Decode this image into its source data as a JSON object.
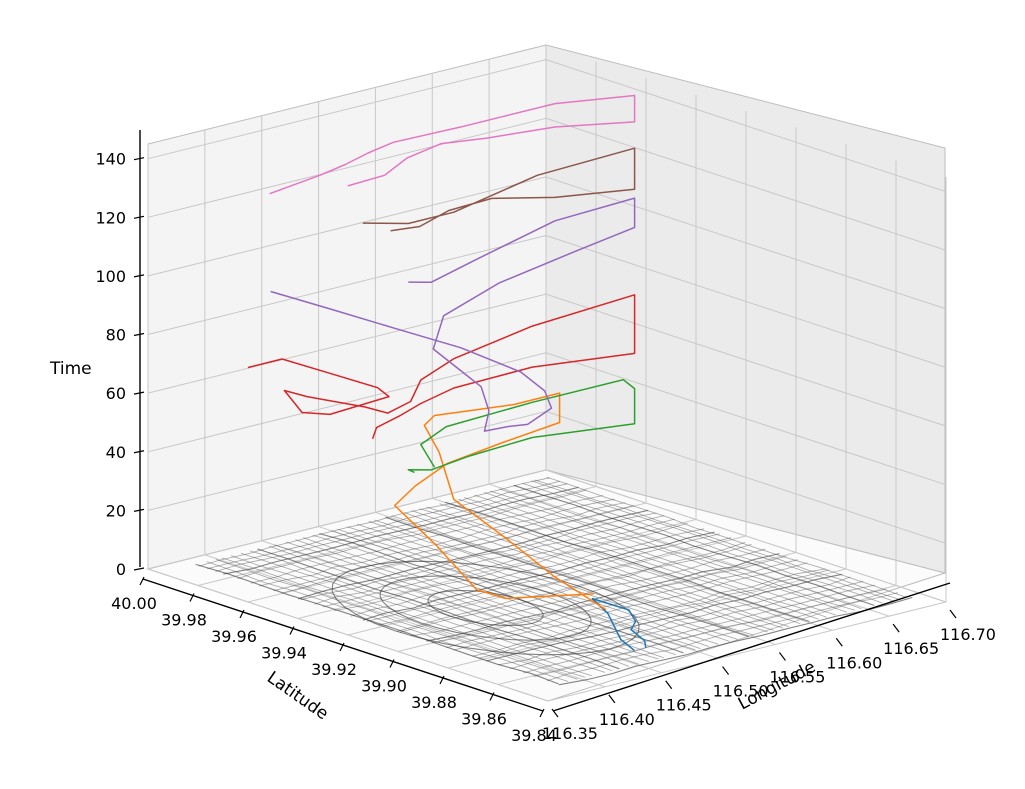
{
  "chart_data": {
    "type": "line",
    "projection": "3d",
    "xlabel": "Longitude",
    "ylabel": "Latitude",
    "zlabel": "Time",
    "xlim": [
      116.35,
      116.7
    ],
    "ylim": [
      39.84,
      40.0
    ],
    "zlim": [
      0,
      145
    ],
    "x_ticks": [
      "116.35",
      "116.40",
      "116.45",
      "116.50",
      "116.55",
      "116.60",
      "116.65",
      "116.70"
    ],
    "y_ticks": [
      "40.00",
      "39.98",
      "39.96",
      "39.94",
      "39.92",
      "39.90",
      "39.88",
      "39.86",
      "39.84"
    ],
    "z_ticks": [
      "0",
      "20",
      "40",
      "60",
      "80",
      "100",
      "120",
      "140"
    ],
    "grid": true,
    "base_layer": "road network map",
    "colors": [
      "#1f77b4",
      "#ff7f0e",
      "#2ca02c",
      "#d62728",
      "#9467bd",
      "#8c564b",
      "#e377c2"
    ],
    "series": [
      {
        "color": "#1f77b4",
        "points": [
          [
            116.47,
            39.86,
            0
          ],
          [
            116.48,
            39.87,
            0
          ],
          [
            116.495,
            39.882,
            4
          ],
          [
            116.51,
            39.895,
            4
          ],
          [
            116.52,
            39.885,
            2
          ],
          [
            116.515,
            39.88,
            0
          ],
          [
            116.5,
            39.875,
            0
          ],
          [
            116.49,
            39.865,
            0
          ],
          [
            116.48,
            39.86,
            0
          ]
        ]
      },
      {
        "color": "#ff7f0e",
        "points": [
          [
            116.5,
            39.885,
            4
          ],
          [
            116.498,
            39.905,
            10
          ],
          [
            116.51,
            39.93,
            15
          ],
          [
            116.52,
            39.955,
            20
          ],
          [
            116.54,
            39.97,
            30
          ],
          [
            116.56,
            39.985,
            33
          ],
          [
            116.58,
            39.99,
            33
          ],
          [
            116.65,
            39.99,
            30
          ],
          [
            116.69,
            39.99,
            30
          ],
          [
            116.69,
            39.99,
            20
          ],
          [
            116.64,
            39.99,
            18
          ],
          [
            116.58,
            39.985,
            18
          ],
          [
            116.53,
            39.975,
            18
          ],
          [
            116.49,
            39.965,
            18
          ],
          [
            116.45,
            39.93,
            18
          ],
          [
            116.43,
            39.905,
            12
          ],
          [
            116.44,
            39.898,
            10
          ],
          [
            116.5,
            39.89,
            8
          ]
        ]
      },
      {
        "color": "#2ca02c",
        "points": [
          [
            116.47,
            39.94,
            40
          ],
          [
            116.48,
            39.95,
            44
          ],
          [
            116.52,
            39.958,
            44
          ],
          [
            116.6,
            39.96,
            44
          ],
          [
            116.68,
            39.96,
            44
          ],
          [
            116.69,
            39.96,
            40
          ],
          [
            116.69,
            39.96,
            28
          ],
          [
            116.6,
            39.96,
            32
          ],
          [
            116.54,
            39.958,
            32
          ],
          [
            116.5,
            39.955,
            32
          ],
          [
            116.48,
            39.955,
            34
          ],
          [
            116.47,
            39.948,
            36
          ]
        ]
      },
      {
        "color": "#d62728",
        "points": [
          [
            116.35,
            39.96,
            80
          ],
          [
            116.38,
            39.96,
            80
          ],
          [
            116.4,
            39.95,
            76
          ],
          [
            116.42,
            39.94,
            72
          ],
          [
            116.43,
            39.94,
            68
          ],
          [
            116.4,
            39.95,
            62
          ],
          [
            116.38,
            39.952,
            64
          ],
          [
            116.36,
            39.95,
            74
          ],
          [
            116.38,
            39.95,
            70
          ],
          [
            116.4,
            39.955,
            66
          ],
          [
            116.42,
            39.945,
            64
          ],
          [
            116.44,
            39.945,
            60
          ],
          [
            116.46,
            39.945,
            62
          ],
          [
            116.48,
            39.95,
            66
          ],
          [
            116.52,
            39.955,
            68
          ],
          [
            116.6,
            39.96,
            70
          ],
          [
            116.69,
            39.96,
            72
          ],
          [
            116.69,
            39.96,
            60
          ],
          [
            116.69,
            39.96,
            52
          ],
          [
            116.6,
            39.96,
            56
          ],
          [
            116.52,
            39.955,
            58
          ],
          [
            116.48,
            39.95,
            58
          ],
          [
            116.45,
            39.945,
            58
          ],
          [
            116.43,
            39.945,
            56
          ],
          [
            116.42,
            39.942,
            54
          ]
        ]
      },
      {
        "color": "#9467bd",
        "points": [
          [
            116.37,
            39.96,
            104
          ],
          [
            116.4,
            39.95,
            98
          ],
          [
            116.43,
            39.935,
            92
          ],
          [
            116.46,
            39.925,
            86
          ],
          [
            116.48,
            39.91,
            80
          ],
          [
            116.49,
            39.905,
            74
          ],
          [
            116.485,
            39.9,
            70
          ],
          [
            116.475,
            39.905,
            64
          ],
          [
            116.48,
            39.915,
            60
          ],
          [
            116.47,
            39.92,
            58
          ],
          [
            116.485,
            39.925,
            62
          ],
          [
            116.5,
            39.935,
            66
          ],
          [
            116.49,
            39.94,
            72
          ],
          [
            116.48,
            39.945,
            78
          ],
          [
            116.5,
            39.95,
            86
          ],
          [
            116.56,
            39.955,
            90
          ],
          [
            116.64,
            39.96,
            92
          ],
          [
            116.69,
            39.96,
            95
          ],
          [
            116.69,
            39.96,
            105
          ],
          [
            116.62,
            39.96,
            104
          ],
          [
            116.54,
            39.955,
            100
          ],
          [
            116.5,
            39.955,
            96
          ],
          [
            116.48,
            39.955,
            98
          ]
        ]
      },
      {
        "color": "#8c564b",
        "points": [
          [
            116.44,
            39.955,
            122
          ],
          [
            116.48,
            39.955,
            118
          ],
          [
            116.52,
            39.955,
            118
          ],
          [
            116.6,
            39.958,
            122
          ],
          [
            116.69,
            39.96,
            122
          ],
          [
            116.69,
            39.96,
            108
          ],
          [
            116.62,
            39.96,
            112
          ],
          [
            116.56,
            39.958,
            118
          ],
          [
            116.52,
            39.957,
            118
          ],
          [
            116.49,
            39.955,
            116
          ],
          [
            116.46,
            39.953,
            118
          ]
        ]
      },
      {
        "color": "#e377c2",
        "points": [
          [
            116.38,
            39.965,
            135
          ],
          [
            116.42,
            39.963,
            138
          ],
          [
            116.44,
            39.962,
            140
          ],
          [
            116.46,
            39.962,
            142
          ],
          [
            116.48,
            39.961,
            144
          ],
          [
            116.54,
            39.96,
            144
          ],
          [
            116.62,
            39.96,
            144
          ],
          [
            116.69,
            39.96,
            140
          ],
          [
            116.69,
            39.96,
            131
          ],
          [
            116.62,
            39.96,
            136
          ],
          [
            116.56,
            39.96,
            138
          ],
          [
            116.52,
            39.96,
            140
          ],
          [
            116.49,
            39.96,
            138
          ],
          [
            116.47,
            39.96,
            134
          ],
          [
            116.44,
            39.961,
            133
          ]
        ]
      }
    ]
  }
}
